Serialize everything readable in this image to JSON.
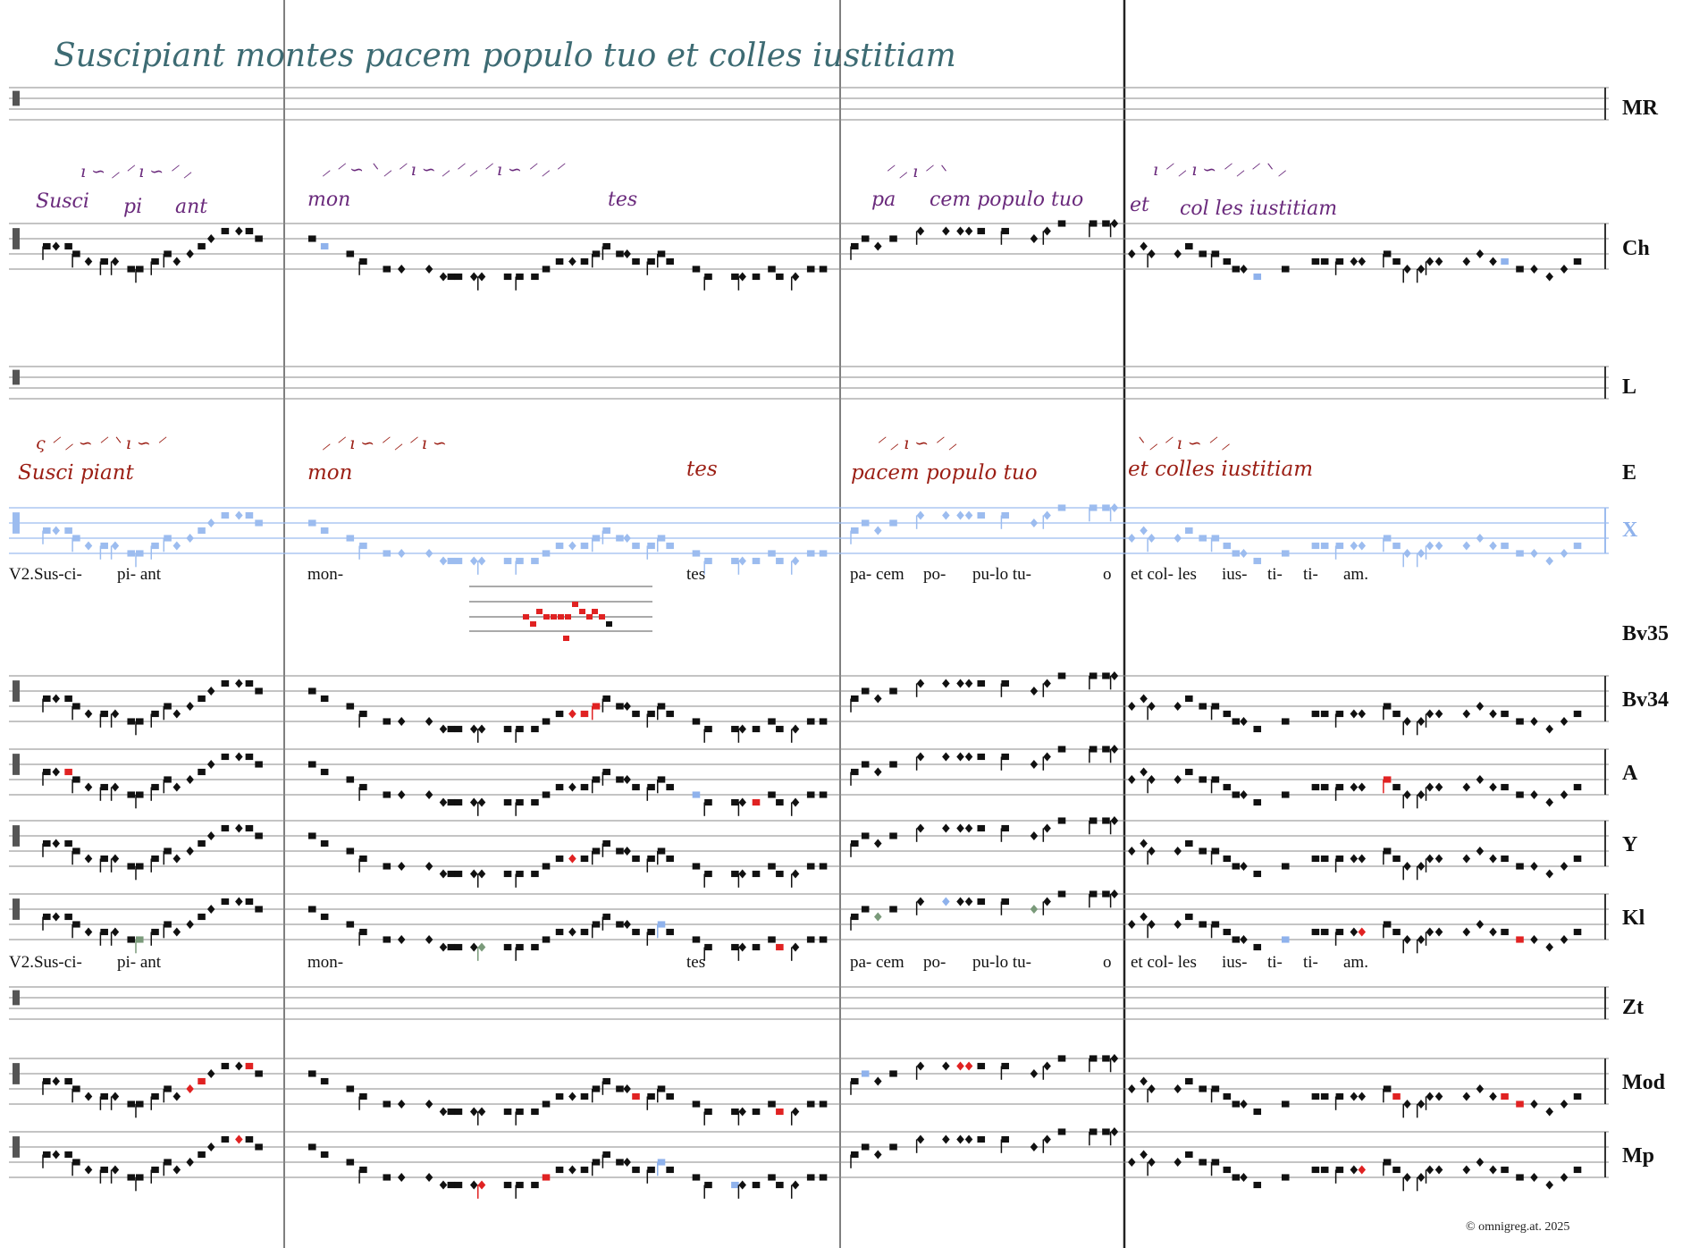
{
  "title_manuscript": "Suscipiant montes pacem populo tuo et colles iustitiam",
  "staves": [
    {
      "label": "MR",
      "key": "mr"
    },
    {
      "label": "Ch",
      "key": "ch"
    },
    {
      "label": "L",
      "key": "l"
    },
    {
      "label": "E",
      "key": "e"
    },
    {
      "label": "X",
      "key": "x"
    },
    {
      "label": "Bv35",
      "key": "bv35"
    },
    {
      "label": "Bv34",
      "key": "bv34"
    },
    {
      "label": "A",
      "key": "a"
    },
    {
      "label": "Y",
      "key": "y"
    },
    {
      "label": "Kl",
      "key": "kl"
    },
    {
      "label": "Zt",
      "key": "zt"
    },
    {
      "label": "Mod",
      "key": "mod"
    },
    {
      "label": "Mp",
      "key": "mp"
    }
  ],
  "manuscript_text": {
    "ch": [
      "Susci",
      "pi",
      "ant",
      "mon",
      "tes",
      "pa",
      "cem populo tuo",
      "et",
      "col les iustitiam"
    ],
    "e": [
      "Susci piant",
      "mon",
      "tes",
      "pacem populo tuo",
      "et colles iustitiam"
    ]
  },
  "neume_strings": {
    "ch": [
      "ı ∽ ⸝ ⸍ ı ∽ ⸍ ⸝",
      "⸝ ⸍ ∽ ⸌ ⸝ ⸍ ı ∽ ⸝ ⸍ ⸝ ⸍ ı ∽ ⸍ ⸝ ⸍",
      "⸍ ⸝ ı ⸍ ⸌",
      "ı ⸍ ⸝ ı ∽ ⸍ ⸝ ⸍ ⸌ ⸝"
    ],
    "e": [
      "ς ⸍ ⸝ ∽ ⸍ ⸌ ı ∽ ⸍",
      "⸝ ⸍ ı ∽ ⸍ ⸝ ⸍ ı ∽",
      "⸍ ⸝ ı ∽ ⸍ ⸝",
      "⸌ ⸝ ⸍ ı ∽ ⸍ ⸝"
    ]
  },
  "lyrics": [
    "V2.Sus-ci-",
    "pi- ant",
    "mon-",
    "tes",
    "pa- cem",
    "po-",
    "pu-lo tu-",
    "o",
    "et col- les",
    "ius-",
    "ti-",
    "ti-",
    "am."
  ],
  "copyright": "© omnigreg.at. 2025",
  "colors": {
    "note": "#111111",
    "variant_red": "#e02222",
    "variant_blue": "#8fb2ec",
    "variant_green": "#7a9a7a",
    "staff_line": "#8a8a8a",
    "staff_x": "#9cbcef",
    "hand_green": "#3d6b73",
    "hand_purple": "#6a2a7c",
    "hand_red": "#9b1e14"
  }
}
